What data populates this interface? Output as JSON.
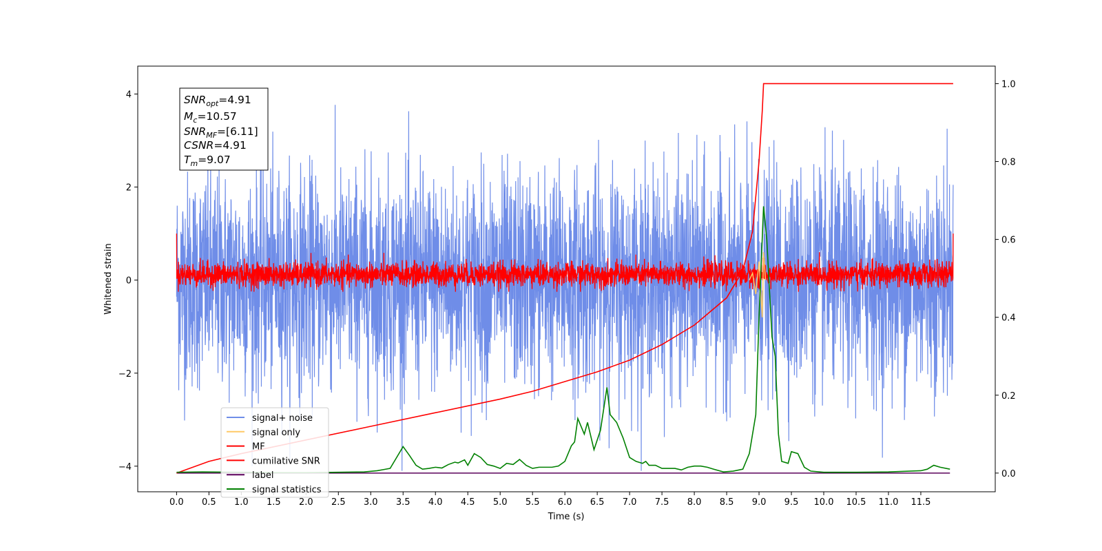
{
  "chart_data": {
    "type": "line",
    "xlabel": "Time (s)",
    "ylabel": "Whitened strain",
    "xlim": [
      -0.6,
      12.65
    ],
    "ylim_left": [
      -4.55,
      4.6
    ],
    "ylim_right": [
      -0.048,
      1.045
    ],
    "xticks": [
      "0.0",
      "0.5",
      "1.0",
      "1.5",
      "2.0",
      "2.5",
      "3.0",
      "3.5",
      "4.0",
      "4.5",
      "5.0",
      "5.5",
      "6.0",
      "6.5",
      "7.0",
      "7.5",
      "8.0",
      "8.5",
      "9.0",
      "9.5",
      "10.0",
      "10.5",
      "11.0",
      "11.5"
    ],
    "yticks_left": [
      "−4",
      "−2",
      "0",
      "2",
      "4"
    ],
    "yticks_right": [
      "0.0",
      "0.2",
      "0.4",
      "0.6",
      "0.8",
      "1.0"
    ],
    "legend_position": "lower-left",
    "grid": false,
    "annotation": {
      "lines": [
        {
          "sym": "SNR",
          "sub": "opt",
          "value": "=4.91"
        },
        {
          "sym": "M",
          "sub": "c",
          "value": "=10.57"
        },
        {
          "sym": "SNR",
          "sub": "MF",
          "value": "=[6.11]"
        },
        {
          "sym": "CSNR",
          "sub": "",
          "value": "=4.91"
        },
        {
          "sym": "T",
          "sub": "m",
          "value": "=9.07"
        }
      ]
    },
    "series": [
      {
        "name": "signal+ noise",
        "axis": "left",
        "color": "#6f8de8",
        "description": "whitened noise, approx. Gaussian, range about -4.1 to 4.2",
        "x_range": [
          0.0,
          12.0
        ],
        "envelope": [
          -3.0,
          3.0
        ]
      },
      {
        "name": "signal only",
        "axis": "left",
        "color": "#ffc966",
        "description": "chirp near merger",
        "points": [
          [
            8.85,
            0.0
          ],
          [
            8.9,
            0.15
          ],
          [
            8.95,
            -0.3
          ],
          [
            9.0,
            0.4
          ],
          [
            9.05,
            -0.8
          ],
          [
            9.07,
            0.6
          ],
          [
            9.1,
            0.0
          ]
        ]
      },
      {
        "name": "MF",
        "axis": "left",
        "color": "#ff0000",
        "description": "matched filter output, noisy around 0",
        "x_range": [
          0.0,
          12.0
        ],
        "endpoints": [
          [
            0.0,
            1.0
          ],
          [
            12.0,
            1.0
          ]
        ],
        "envelope": [
          -0.25,
          0.6
        ]
      },
      {
        "name": "cumilative SNR",
        "axis": "right",
        "color": "#ff0000",
        "points": [
          [
            0.0,
            0.0
          ],
          [
            0.5,
            0.03
          ],
          [
            1.0,
            0.05
          ],
          [
            2.0,
            0.085
          ],
          [
            3.0,
            0.12
          ],
          [
            4.0,
            0.155
          ],
          [
            5.0,
            0.19
          ],
          [
            5.5,
            0.21
          ],
          [
            6.0,
            0.235
          ],
          [
            6.5,
            0.26
          ],
          [
            7.0,
            0.29
          ],
          [
            7.5,
            0.33
          ],
          [
            8.0,
            0.38
          ],
          [
            8.5,
            0.45
          ],
          [
            8.75,
            0.52
          ],
          [
            8.9,
            0.62
          ],
          [
            9.0,
            0.8
          ],
          [
            9.05,
            0.93
          ],
          [
            9.07,
            1.0
          ],
          [
            12.0,
            1.0
          ]
        ]
      },
      {
        "name": "label",
        "axis": "right",
        "color": "#5a005a",
        "points": [
          [
            0.0,
            0.0
          ],
          [
            11.95,
            0.0
          ]
        ]
      },
      {
        "name": "signal statistics",
        "axis": "right",
        "color": "#008000",
        "points": [
          [
            0.0,
            0.002
          ],
          [
            0.4,
            0.003
          ],
          [
            1.0,
            0.002
          ],
          [
            1.5,
            0.001
          ],
          [
            2.0,
            0.001
          ],
          [
            2.5,
            0.002
          ],
          [
            2.9,
            0.003
          ],
          [
            3.1,
            0.006
          ],
          [
            3.2,
            0.009
          ],
          [
            3.3,
            0.012
          ],
          [
            3.4,
            0.04
          ],
          [
            3.5,
            0.068
          ],
          [
            3.6,
            0.045
          ],
          [
            3.7,
            0.02
          ],
          [
            3.8,
            0.01
          ],
          [
            3.9,
            0.012
          ],
          [
            4.0,
            0.015
          ],
          [
            4.1,
            0.013
          ],
          [
            4.2,
            0.022
          ],
          [
            4.3,
            0.028
          ],
          [
            4.35,
            0.026
          ],
          [
            4.45,
            0.034
          ],
          [
            4.5,
            0.02
          ],
          [
            4.6,
            0.05
          ],
          [
            4.7,
            0.04
          ],
          [
            4.8,
            0.022
          ],
          [
            4.9,
            0.018
          ],
          [
            5.0,
            0.012
          ],
          [
            5.1,
            0.025
          ],
          [
            5.2,
            0.022
          ],
          [
            5.3,
            0.035
          ],
          [
            5.4,
            0.02
          ],
          [
            5.5,
            0.012
          ],
          [
            5.6,
            0.015
          ],
          [
            5.8,
            0.015
          ],
          [
            5.9,
            0.018
          ],
          [
            6.0,
            0.03
          ],
          [
            6.1,
            0.07
          ],
          [
            6.15,
            0.08
          ],
          [
            6.2,
            0.14
          ],
          [
            6.3,
            0.1
          ],
          [
            6.35,
            0.13
          ],
          [
            6.45,
            0.06
          ],
          [
            6.55,
            0.11
          ],
          [
            6.65,
            0.22
          ],
          [
            6.7,
            0.15
          ],
          [
            6.8,
            0.13
          ],
          [
            6.9,
            0.09
          ],
          [
            7.0,
            0.04
          ],
          [
            7.1,
            0.03
          ],
          [
            7.2,
            0.025
          ],
          [
            7.25,
            0.03
          ],
          [
            7.3,
            0.02
          ],
          [
            7.4,
            0.02
          ],
          [
            7.5,
            0.012
          ],
          [
            7.6,
            0.012
          ],
          [
            7.7,
            0.012
          ],
          [
            7.8,
            0.008
          ],
          [
            7.9,
            0.015
          ],
          [
            8.0,
            0.018
          ],
          [
            8.1,
            0.018
          ],
          [
            8.2,
            0.015
          ],
          [
            8.3,
            0.01
          ],
          [
            8.45,
            0.003
          ],
          [
            8.6,
            0.005
          ],
          [
            8.75,
            0.01
          ],
          [
            8.85,
            0.05
          ],
          [
            8.95,
            0.15
          ],
          [
            9.0,
            0.4
          ],
          [
            9.07,
            0.685
          ],
          [
            9.12,
            0.6
          ],
          [
            9.2,
            0.35
          ],
          [
            9.25,
            0.3
          ],
          [
            9.3,
            0.1
          ],
          [
            9.35,
            0.03
          ],
          [
            9.45,
            0.025
          ],
          [
            9.5,
            0.055
          ],
          [
            9.6,
            0.05
          ],
          [
            9.7,
            0.015
          ],
          [
            9.8,
            0.005
          ],
          [
            10.0,
            0.002
          ],
          [
            10.5,
            0.002
          ],
          [
            11.0,
            0.003
          ],
          [
            11.5,
            0.006
          ],
          [
            11.6,
            0.01
          ],
          [
            11.7,
            0.02
          ],
          [
            11.8,
            0.015
          ],
          [
            11.95,
            0.01
          ]
        ]
      }
    ]
  }
}
